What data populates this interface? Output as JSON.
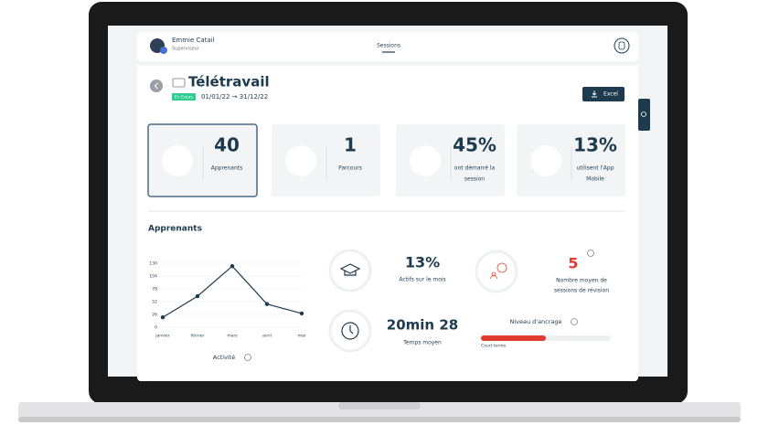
{
  "header": {
    "user_name": "Emmie Catail",
    "user_role": "Superviseur",
    "nav": "Sessions"
  },
  "session": {
    "title": "Télétravail",
    "status": "En Cours",
    "dates": "01/01/22 → 31/12/22",
    "export": "Excel"
  },
  "stats": [
    {
      "value": "40",
      "label": [
        "Apprenants"
      ]
    },
    {
      "value": "1",
      "label": [
        "Parcours"
      ]
    },
    {
      "value": "45%",
      "label": [
        "ont démarré la",
        "session"
      ]
    },
    {
      "value": "13%",
      "label": [
        "utilisent l'App",
        "Mobile"
      ]
    }
  ],
  "section_title": "Apprenants",
  "metrics": {
    "active": {
      "value": "13%",
      "label": "Actifs sur le mois"
    },
    "revisions": {
      "value": "5",
      "label": [
        "Nombre moyen de",
        "sessions de révision"
      ]
    },
    "time": {
      "value": "20min 28",
      "label": "Temps moyen"
    },
    "anchor": {
      "title": "Niveau d'ancrage",
      "label": "Court terme"
    }
  },
  "chart_data": {
    "type": "line",
    "x_label": "Activité",
    "categories": [
      "janvier",
      "février",
      "mars",
      "avril",
      "mai"
    ],
    "values": [
      20,
      63,
      124,
      47,
      28
    ],
    "color": "#1d3b4f",
    "ylim": [
      0,
      130
    ],
    "yticks": [
      0,
      26,
      52,
      78,
      104,
      130
    ],
    "grid": true
  }
}
